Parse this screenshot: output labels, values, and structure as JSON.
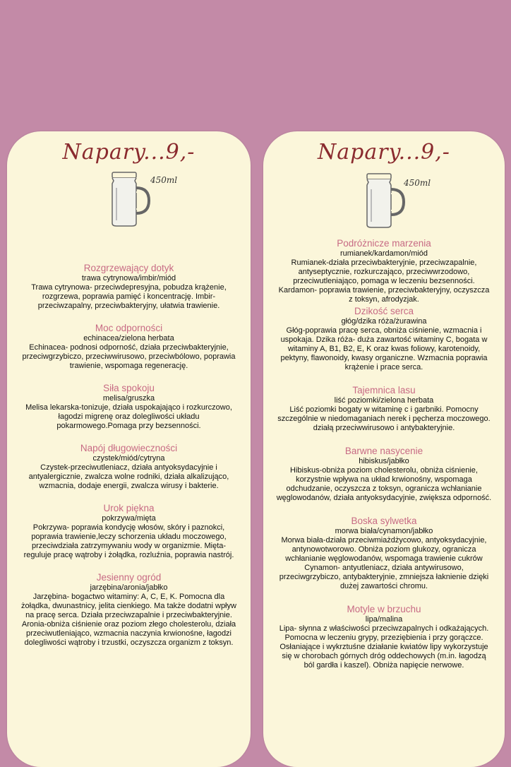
{
  "left": {
    "title": "Napary...9,-",
    "volume": "450ml",
    "items": [
      {
        "name": "Rozgrzewający dotyk",
        "ingredients": "trawa cytrynowa/imbir/miód",
        "description": "Trawa cytrynowa- przeciwdepresyjna, pobudza krążenie, rozgrzewa, poprawia pamięć i koncentrację. Imbir-przeciwzapalny, przeciwbakteryjny, ułatwia trawienie."
      },
      {
        "name": "Moc odporności",
        "ingredients": "echinacea/zielona herbata",
        "description": "Echinacea- podnosi odporność, działa przeciwbakteryjnie, przeciwgrzybiczo, przeciwwirusowo, przeciwbólowo, poprawia trawienie, wspomaga regenerację."
      },
      {
        "name": "Siła spokoju",
        "ingredients": "melisa/gruszka",
        "description": "Melisa lekarska-tonizuje, działa uspokajająco i rozkurczowo, łagodzi migrenę oraz dolegliwości układu pokarmowego.Pomaga przy bezsenności."
      },
      {
        "name": "Napój długowieczności",
        "ingredients": "czystek/miód/cytryna",
        "description": "Czystek-przeciwutleniacz, działa antyoksydacyjnie i antyalergicznie, zwalcza wolne rodniki, działa alkalizująco, wzmacnia, dodaje energii, zwalcza wirusy i bakterie."
      },
      {
        "name": "Urok piękna",
        "ingredients": "pokrzywa/mięta",
        "description": "Pokrzywa- poprawia kondycję włosów, skóry i paznokci, poprawia trawienie,leczy schorzenia układu moczowego, przeciwdziała zatrzymywaniu wody w organizmie. Mięta- reguluje pracę wątroby i żołądka, rozluźnia, poprawia nastrój."
      },
      {
        "name": "Jesienny ogród",
        "ingredients": "jarzębina/aronia/jabłko",
        "description": "Jarzębina- bogactwo witaminy: A, C, E, K. Pomocna dla żołądka, dwunastnicy, jelita cienkiego. Ma także dodatni wpływ na pracę serca. Działa przeciwzapalnie i przeciwbakteryjnie. Aronia-obniża ciśnienie oraz poziom złego cholesterolu, działa przeciwutleniająco, wzmacnia naczynia krwionośne, łagodzi dolegliwości wątroby i trzustki, oczyszcza organizm z toksyn."
      }
    ]
  },
  "right": {
    "title": "Napary...9,-",
    "volume": "450ml",
    "items": [
      {
        "name": "Podróżnicze marzenia",
        "ingredients": "rumianek/kardamon/miód",
        "description": "Rumianek-działa przeciwbakteryjnie, przeciwzapalnie, antyseptycznie, rozkurczająco, przeciwwrzodowo, przeciwutleniająco, pomaga w leczeniu bezsenności. Kardamon- poprawia trawienie, przeciwbakteryjny, oczyszcza z toksyn, afrodyzjak."
      },
      {
        "name": "Dzikość serca",
        "ingredients": "głóg/dzika róża/żurawina",
        "description": "Głóg-poprawia pracę serca, obniża ciśnienie, wzmacnia i uspokaja. Dzika róża- duża zawartość witaminy C, bogata w witaminy A, B1, B2, E, K oraz kwas foliowy, karotenoidy, pektyny, flawonoidy, kwasy organiczne. Wzmacnia poprawia krążenie i prace serca."
      },
      {
        "name": "Tajemnica lasu",
        "ingredients": "liść poziomki/zielona herbata",
        "description": "Liść poziomki bogaty w witaminę c i garbniki. Pomocny szczególnie w niedomaganiach nerek i pęcherza moczowego. działą przeciwwirusowo i antybakteryjnie."
      },
      {
        "name": "Barwne nasycenie",
        "ingredients": "hibiskus/jabłko",
        "description": "Hibiskus-obniża poziom cholesterolu, obniża ciśnienie, korzystnie wpływa na układ krwionośny, wspomaga odchudzanie, oczyszcza z toksyn, ogranicza wchłanianie węglowodanów, działa antyoksydacyjnie, zwiększa odporność."
      },
      {
        "name": "Boska sylwetka",
        "ingredients": "morwa biała/cynamon/jabłko",
        "description": "Morwa biała-działa przeciwmiażdżycowo, antyoksydacyjnie, antynowotworowo. Obniża poziom glukozy, ogranicza wchłanianie węglowodanów, wspomaga trawienie cukrów Cynamon- antyutleniacz, działa antywirusowo, przeciwgrzybiczo, antybakteryjnie, zmniejsza łaknienie dzięki dużej zawartości chromu."
      },
      {
        "name": "Motyle w brzuchu",
        "ingredients": "lipa/malina",
        "description": "Lipa- słynna z właściwości przeciwzapalnych i odkażających. Pomocna w leczeniu grypy, przeziębienia i przy gorączce. Osłaniające i wykrztuśne działanie kwiatów lipy wykorzystuje się w chorobach górnych dróg oddechowych (m.in. łagodzą ból gardła i kaszel). Obniża napięcie nerwowe."
      }
    ]
  }
}
